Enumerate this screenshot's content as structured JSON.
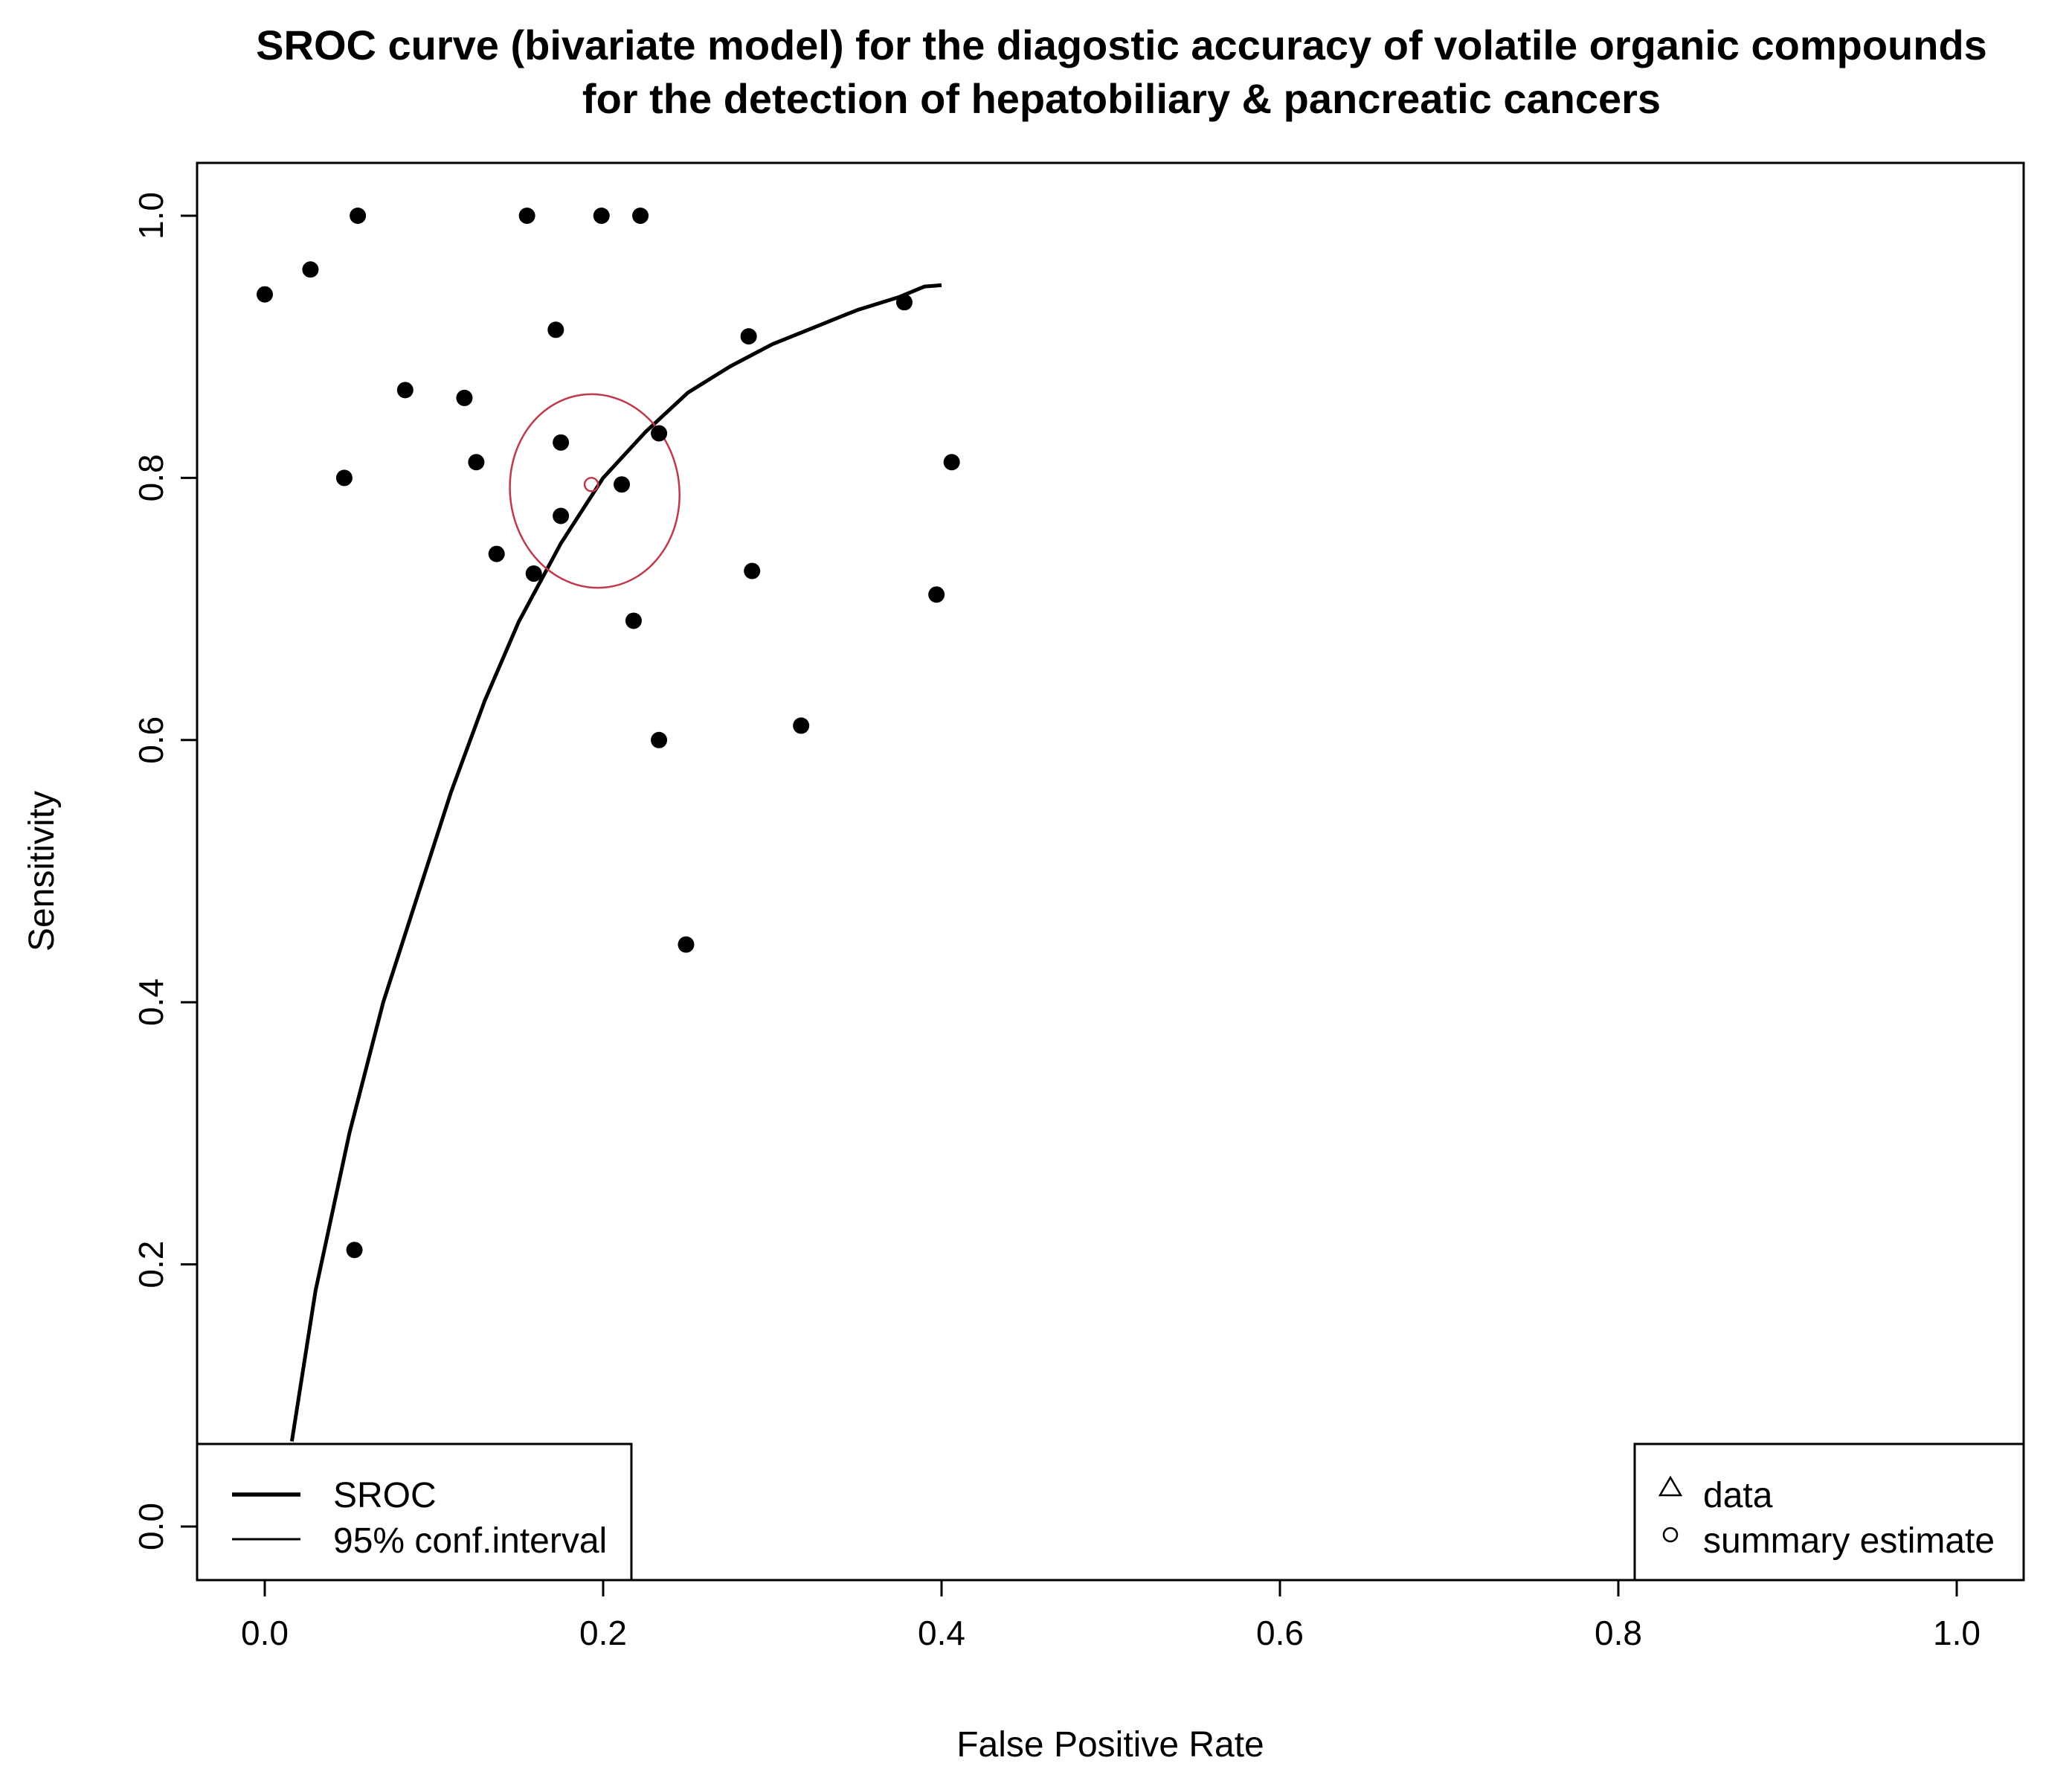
{
  "chart_data": {
    "type": "scatter",
    "title": "SROC curve (bivariate model) for the diagostic accuracy of volatile organic compounds",
    "subtitle": "for the detection of hepatobiliary & pancreatic cancers",
    "xlabel": "False Positive Rate",
    "ylabel": "Sensitivity",
    "xlim": [
      0.0,
      1.0
    ],
    "ylim": [
      0.0,
      1.0
    ],
    "x_ticks": [
      "0.0",
      "0.2",
      "0.4",
      "0.6",
      "0.8",
      "1.0"
    ],
    "y_ticks": [
      "0.0",
      "0.2",
      "0.4",
      "0.6",
      "0.8",
      "1.0"
    ],
    "grid": false,
    "series": [
      {
        "type": "scatter",
        "color": "#000000",
        "points": [
          {
            "x": 0.0,
            "y": 0.94
          },
          {
            "x": 0.027,
            "y": 0.959
          },
          {
            "x": 0.055,
            "y": 1.0
          },
          {
            "x": 0.047,
            "y": 0.8
          },
          {
            "x": 0.083,
            "y": 0.867
          },
          {
            "x": 0.118,
            "y": 0.861
          },
          {
            "x": 0.125,
            "y": 0.812
          },
          {
            "x": 0.137,
            "y": 0.742
          },
          {
            "x": 0.155,
            "y": 1.0
          },
          {
            "x": 0.172,
            "y": 0.913
          },
          {
            "x": 0.175,
            "y": 0.827
          },
          {
            "x": 0.175,
            "y": 0.771
          },
          {
            "x": 0.159,
            "y": 0.727
          },
          {
            "x": 0.199,
            "y": 1.0
          },
          {
            "x": 0.222,
            "y": 1.0
          },
          {
            "x": 0.211,
            "y": 0.795
          },
          {
            "x": 0.233,
            "y": 0.834
          },
          {
            "x": 0.218,
            "y": 0.691
          },
          {
            "x": 0.233,
            "y": 0.6
          },
          {
            "x": 0.249,
            "y": 0.444
          },
          {
            "x": 0.286,
            "y": 0.908
          },
          {
            "x": 0.288,
            "y": 0.729
          },
          {
            "x": 0.317,
            "y": 0.611
          },
          {
            "x": 0.378,
            "y": 0.934
          },
          {
            "x": 0.397,
            "y": 0.711
          },
          {
            "x": 0.406,
            "y": 0.812
          },
          {
            "x": 0.053,
            "y": 0.211
          }
        ]
      },
      {
        "type": "line",
        "name": "SROC",
        "color": "#000000",
        "points": [
          {
            "x": 0.016,
            "y": 0.065
          },
          {
            "x": 0.03,
            "y": 0.18
          },
          {
            "x": 0.05,
            "y": 0.3
          },
          {
            "x": 0.07,
            "y": 0.4
          },
          {
            "x": 0.09,
            "y": 0.48
          },
          {
            "x": 0.11,
            "y": 0.56
          },
          {
            "x": 0.13,
            "y": 0.63
          },
          {
            "x": 0.15,
            "y": 0.69
          },
          {
            "x": 0.175,
            "y": 0.75
          },
          {
            "x": 0.2,
            "y": 0.8
          },
          {
            "x": 0.225,
            "y": 0.835
          },
          {
            "x": 0.25,
            "y": 0.865
          },
          {
            "x": 0.275,
            "y": 0.885
          },
          {
            "x": 0.3,
            "y": 0.902
          },
          {
            "x": 0.325,
            "y": 0.915
          },
          {
            "x": 0.35,
            "y": 0.928
          },
          {
            "x": 0.375,
            "y": 0.938
          },
          {
            "x": 0.39,
            "y": 0.946
          },
          {
            "x": 0.4,
            "y": 0.947
          }
        ]
      },
      {
        "type": "ellipse",
        "name": "95% conf.interval",
        "color": "#c0394b",
        "center": {
          "x": 0.195,
          "y": 0.79
        },
        "radius_x": 0.05,
        "radius_y": 0.074
      },
      {
        "type": "point",
        "name": "summary estimate",
        "color": "#c0394b",
        "x": 0.193,
        "y": 0.795
      }
    ],
    "legends": [
      {
        "placement": "bottom-left",
        "entries": [
          {
            "label": "SROC",
            "symbol": "thick-line"
          },
          {
            "label": "95% conf.interval",
            "symbol": "thin-line"
          }
        ]
      },
      {
        "placement": "bottom-right",
        "entries": [
          {
            "label": "data",
            "symbol": "triangle-icon"
          },
          {
            "label": "summary estimate",
            "symbol": "circle-icon"
          }
        ]
      }
    ]
  }
}
